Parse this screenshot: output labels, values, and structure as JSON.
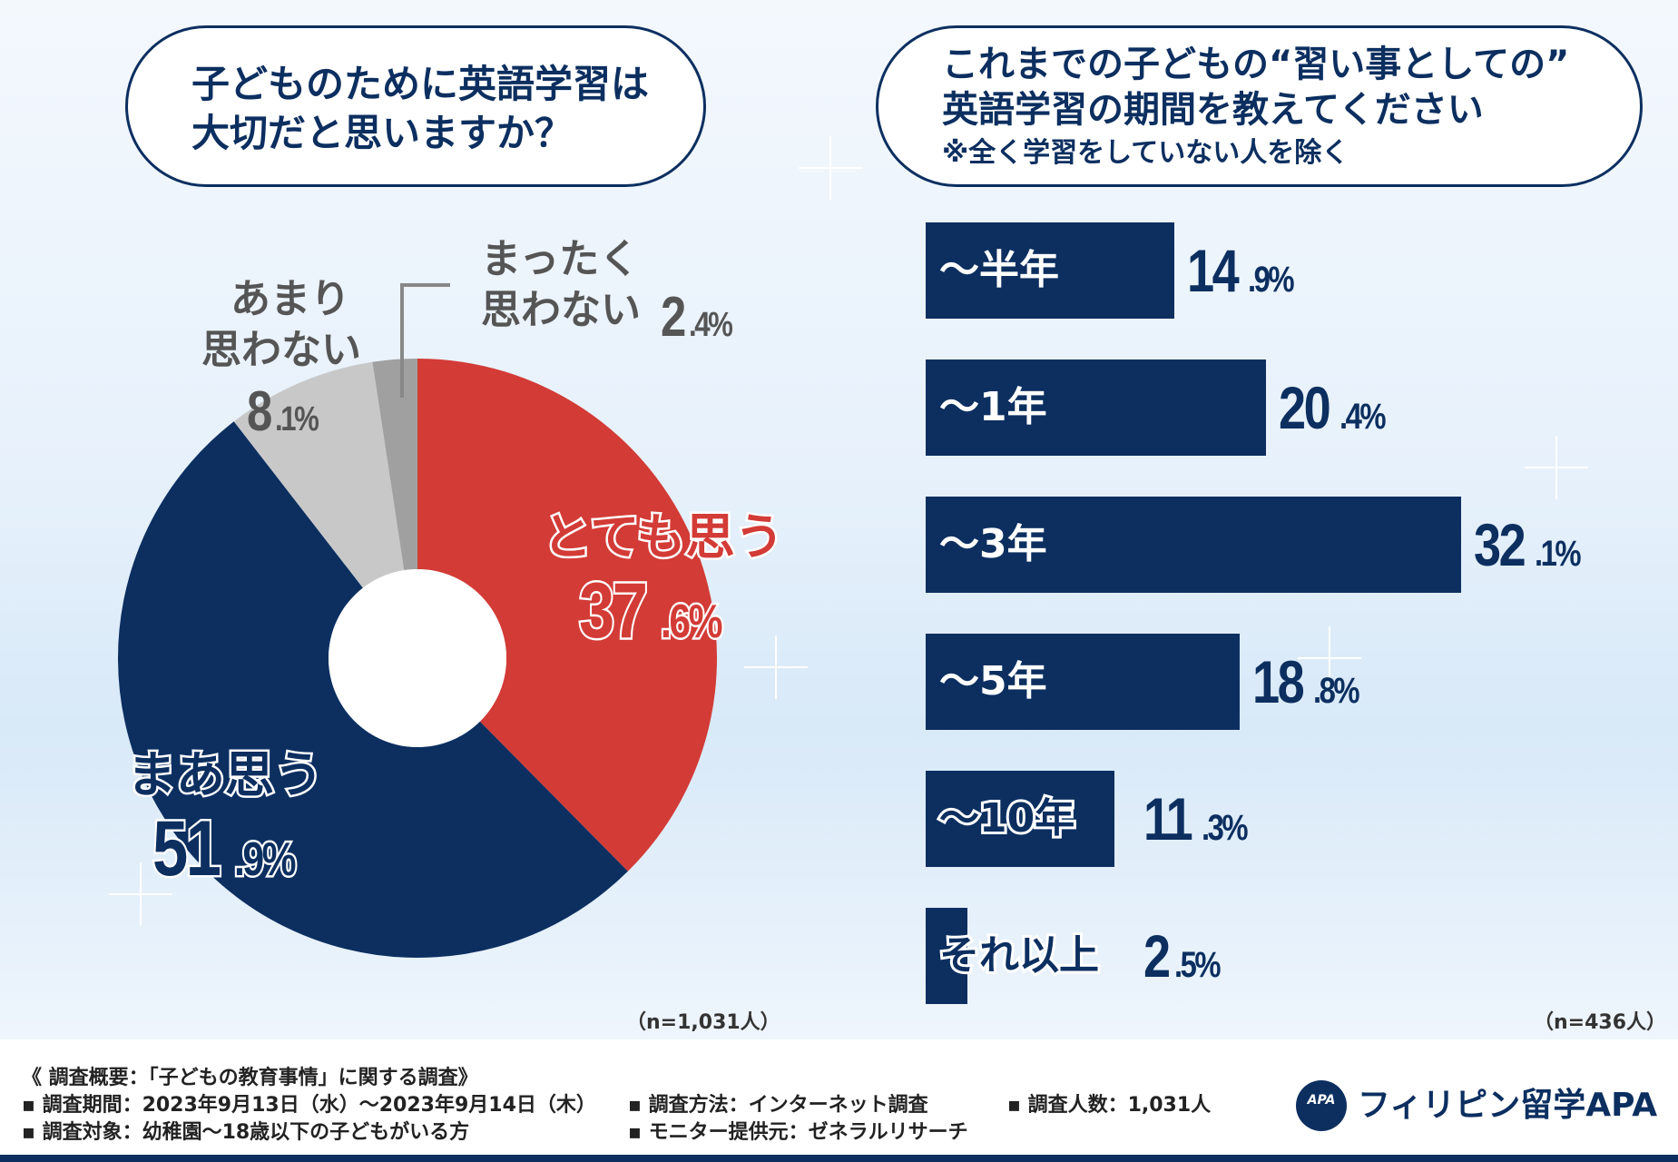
{
  "colors": {
    "navy": "#0c2f60",
    "red": "#d33b36",
    "light_gray": "#c8c8c8",
    "mid_gray": "#a0a0a0",
    "label_gray": "#555555"
  },
  "left": {
    "question_line1": "子どものために英語学習は",
    "question_line2": "大切だと思いますか？",
    "n_label": "（n=1,031人）"
  },
  "right": {
    "question_line1": "これまでの子どもの“習い事としての”",
    "question_line2": "英語学習の期間を教えてください",
    "question_note": "※全く学習をしていない人を除く",
    "n_label": "（n=436人）"
  },
  "chart_data": [
    {
      "type": "pie",
      "title": "子どものために英語学習は大切だと思いますか？",
      "donut": true,
      "start": "top, clockwise",
      "slices": [
        {
          "label": "とても思う",
          "value": 37.6,
          "int": "37",
          "dec": ".6%",
          "color": "#d33b36"
        },
        {
          "label": "まあ思う",
          "value": 51.9,
          "int": "51",
          "dec": ".9%",
          "color": "#0c2f60"
        },
        {
          "label_line1": "あまり",
          "label_line2": "思わない",
          "label": "あまり思わない",
          "value": 8.1,
          "int": "8",
          "dec": ".1%",
          "color": "#c8c8c8"
        },
        {
          "label_line1": "まったく",
          "label_line2": "思わない",
          "label": "まったく思わない",
          "value": 2.4,
          "int": "2",
          "dec": ".4%",
          "color": "#a0a0a0"
        }
      ],
      "n": "n=1,031人"
    },
    {
      "type": "bar",
      "orientation": "horizontal",
      "title": "これまでの子どもの“習い事としての”英語学習の期間を教えてください",
      "categories": [
        "～半年",
        "～1年",
        "～3年",
        "～5年",
        "～10年",
        "それ以上"
      ],
      "values": [
        14.9,
        20.4,
        32.1,
        18.8,
        11.3,
        2.5
      ],
      "value_int": [
        "14",
        "20",
        "32",
        "18",
        "11",
        "2"
      ],
      "value_dec": [
        ".9%",
        ".4%",
        ".1%",
        ".8%",
        ".3%",
        ".5%"
      ],
      "xlim": [
        0,
        32.1
      ],
      "n": "n=436人"
    }
  ],
  "footer": {
    "title": "《 調査概要：「子どもの教育事情」に関する調査》",
    "period": "▪ 調査期間：2023年9月13日（水）～2023年9月14日（木）",
    "target": "▪ 調査対象：幼稚園～18歳以下の子どもがいる方",
    "method": "▪ 調査方法：インターネット調査",
    "monitor": "▪ モニター提供元：ゼネラルリサーチ",
    "count": "▪ 調査人数：1,031人",
    "logo_mark": "APA",
    "logo_text": "フィリピン留学APA"
  }
}
